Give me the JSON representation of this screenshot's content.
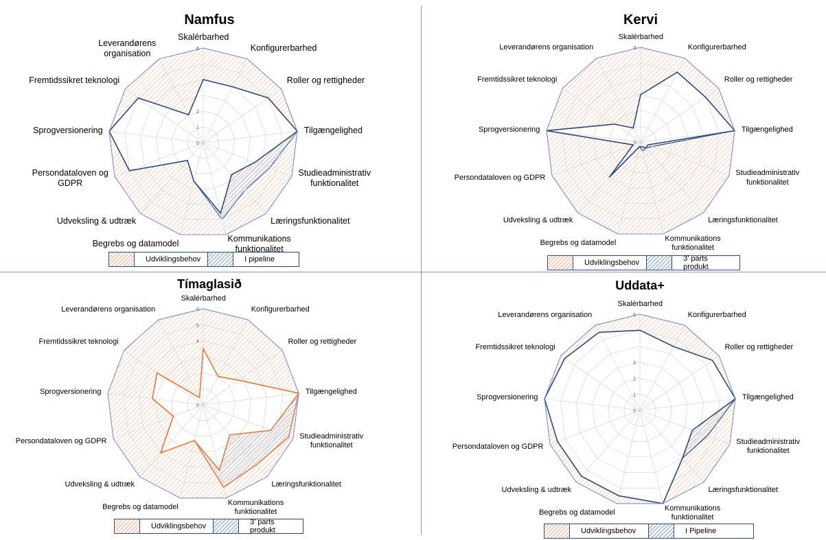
{
  "labels": [
    "Skalérbarhed",
    "Konfigurerbarhed",
    "Roller og rettigheder",
    "Tilgængelighed",
    "Studieadministrativ funktionalitet",
    "Læringsfunktionalitet",
    "Kommunikations funktionalitet",
    "Begrebs og datamodel",
    "Udveksling & udtræk",
    "Persondataloven og GDPR",
    "Sprogversionering",
    "Fremtidssikret teknologi",
    "Leverandørens organisation"
  ],
  "colors": {
    "development_hatch": "#f2c2a4",
    "pipeline_hatch": "#9fb5d8",
    "current_line": "#2e4a7a",
    "orange_line": "#e87c3e",
    "grid": "#d9d9d9"
  },
  "chart_data": [
    {
      "type": "radar",
      "title": "Namfus",
      "rmax": 6,
      "tick_labels": [
        "0",
        "1",
        "2",
        "",
        "",
        "",
        "6"
      ],
      "labels": [
        "Skalérbarhed",
        "Konfigurerbarhed",
        "Roller og rettigheder",
        "Tilgængelighed",
        "Studieadministrativ funktionalitet",
        "Læringsfunktionalitet",
        "Kommunikations funktionalitet",
        "Begrebs og datamodel",
        "Udveksling & udtræk",
        "Persondataloven og GDPR",
        "Sprogversionering",
        "Fremtidssikret teknologi",
        "Leverandørens organisation"
      ],
      "label_lines": [
        [
          "Skalérbarhed"
        ],
        [
          "Konfigurerbarhed"
        ],
        [
          "Roller og rettigheder"
        ],
        [
          "Tilgængelighed"
        ],
        [
          "Studieadministrativ",
          "funktionalitet"
        ],
        [
          "Læringsfunktionalitet"
        ],
        [
          "Kommunikations",
          "funktionalitet"
        ],
        [
          "Begrebs og datamodel"
        ],
        [
          "Udveksling & udtræk"
        ],
        [
          "Persondataloven og",
          "GDPR"
        ],
        [
          "Sprogversionering"
        ],
        [
          "Fremtidssikret teknologi"
        ],
        [
          "Leverandørens",
          "organisation"
        ]
      ],
      "series": [
        {
          "name": "Udviklingsbehov",
          "values": [
            6,
            6,
            6,
            6,
            6,
            6,
            6,
            6,
            6,
            6,
            6,
            6,
            6
          ]
        },
        {
          "name": "I pipeline",
          "values": [
            4,
            4,
            5,
            6,
            4.5,
            4,
            5,
            2.5,
            1.5,
            5,
            6,
            5,
            2
          ]
        },
        {
          "values": [
            4,
            4,
            5,
            6,
            3.5,
            2.7,
            4.6,
            2.5,
            1.5,
            5,
            6,
            5,
            2
          ]
        }
      ],
      "legend": [
        "Udviklingsbehov",
        "I pipeline"
      ]
    },
    {
      "type": "radar",
      "title": "Kervi",
      "rmax": 6,
      "tick_labels": [
        "0",
        "",
        "",
        "",
        "",
        "",
        "6"
      ],
      "labels": [
        "Skalérbarhed",
        "Konfigurerbarhed",
        "Roller og rettigheder",
        "Tilgængelighed",
        "Studieadministrativ funktionalitet",
        "Læringsfunktionalitet",
        "Kommunikations funktionalitet",
        "Begrebs og datamodel",
        "Udveksling & udtræk",
        "Persondataloven og GDPR",
        "Sprogversionering",
        "Fremtidssikret teknologi",
        "Leverandørens organisation"
      ],
      "label_lines": [
        [
          "Skalérbarhed"
        ],
        [
          "Konfigurerbarhed"
        ],
        [
          "Roller og rettigheder"
        ],
        [
          "Tilgængelighed"
        ],
        [
          "Studieadministrativ",
          "funktionalitet"
        ],
        [
          "Læringsfunktionalitet"
        ],
        [
          "Kommunikations",
          "funktionalitet"
        ],
        [
          "Begrebs og datamodel"
        ],
        [
          "Udveksling & udtræk"
        ],
        [
          "Persondataloven og GDPR"
        ],
        [
          "Sprogversionering"
        ],
        [
          "Fremtidssikret teknologi"
        ],
        [
          "Leverandørens organisation"
        ]
      ],
      "series": [
        {
          "name": "Udviklingsbehov",
          "values": [
            6,
            6,
            6,
            6,
            6,
            6,
            6,
            6,
            6,
            6,
            6,
            6,
            6
          ]
        },
        {
          "name": "3’ parts produkt",
          "values": [
            3,
            5,
            5,
            6,
            0.8,
            0.5,
            0.6,
            0.3,
            3,
            0.5,
            6,
            2,
            1
          ]
        },
        {
          "values": [
            3,
            5,
            5,
            6,
            0.5,
            0.5,
            0.3,
            0.3,
            3,
            0.5,
            6,
            2,
            1
          ]
        }
      ],
      "legend": [
        "Udviklingsbehov",
        "3’ parts produkt"
      ]
    },
    {
      "type": "radar",
      "title": "Tímaglasið",
      "rmax": 6,
      "tick_labels": [
        "0",
        "",
        "",
        "",
        "4",
        "5",
        "6"
      ],
      "labels": [
        "Skalérbarhed",
        "Konfigurerbarhed",
        "Roller og rettigheder",
        "Tilgængelighed",
        "Studieadministrativ funktionalitet",
        "Læringsfunktionalitet",
        "Kommunikations funktionalitet",
        "Begrebs og datamodel",
        "Udveksling & udtræk",
        "Persondataloven og GDPR",
        "Sprogversionering",
        "Fremtidssikret teknologi",
        "Leverandørens organisation"
      ],
      "label_lines": [
        [
          "Skalérbarhed"
        ],
        [
          "Konfigurerbarhed"
        ],
        [
          "Roller og rettigheder"
        ],
        [
          "Tilgængelighed"
        ],
        [
          "Studieadministrativ",
          "funktionalitet"
        ],
        [
          "Læringsfunktionalitet"
        ],
        [
          "Kommunikations",
          "funktionalitet"
        ],
        [
          "Begrebs og datamodel"
        ],
        [
          "Udveksling & udtræk"
        ],
        [
          "Persondataloven og GDPR"
        ],
        [
          "Sprogversionering"
        ],
        [
          "Fremtidssikret teknologi"
        ],
        [
          "Leverandørens organisation"
        ]
      ],
      "series": [
        {
          "name": "Udviklingsbehov",
          "values": [
            6,
            6,
            6,
            6,
            6,
            6,
            6,
            6,
            6,
            6,
            6,
            6,
            6
          ]
        },
        {
          "name": "3’ parts produkt",
          "values": [
            3.5,
            2,
            2.7,
            6,
            5.7,
            5,
            5.3,
            2.3,
            4,
            2,
            3.2,
            3.5,
            0.5
          ]
        },
        {
          "values": [
            3.5,
            2,
            2.7,
            6,
            4.5,
            2.5,
            4.2,
            2.3,
            4,
            2,
            3.2,
            3.5,
            0.5
          ]
        }
      ],
      "legend": [
        "Udviklingsbehov",
        "3’ parts produkt"
      ]
    },
    {
      "type": "radar",
      "title": "Uddata+",
      "rmax": 6,
      "tick_labels": [
        "0",
        "1",
        "2",
        "3",
        "",
        "",
        "6"
      ],
      "labels": [
        "Skalérbarhed",
        "Konfigurerbarhed",
        "Roller og rettigheder",
        "Tilgængelighed",
        "Studieadministrativ funktionalitet",
        "Læringsfunktionalitet",
        "Kommunikations funktionalitet",
        "Begrebs og datamodel",
        "Udveksling & udtræk",
        "Persondataloven og GDPR",
        "Sprogversionering",
        "Fremtidssikret teknologi",
        "Leverandørens organisation"
      ],
      "label_lines": [
        [
          "Skalérbarhed"
        ],
        [
          "Konfigurerbarhed"
        ],
        [
          "Roller og rettigheder"
        ],
        [
          "Tilgængelighed"
        ],
        [
          "Studieadministrativ",
          "funktionalitet"
        ],
        [
          "Læringsfunktionalitet"
        ],
        [
          "Kommunikations",
          "funktionalitet"
        ],
        [
          "Begrebs og datamodel"
        ],
        [
          "Udveksling & udtræk"
        ],
        [
          "Persondataloven og GDPR"
        ],
        [
          "Sprogversionering"
        ],
        [
          "Fremtidssikret teknologi"
        ],
        [
          "Leverandørens organisation"
        ]
      ],
      "series": [
        {
          "name": "Udviklingsbehov",
          "values": [
            6,
            6,
            6,
            6,
            6,
            6,
            6,
            6,
            6,
            6,
            6,
            6,
            6
          ]
        },
        {
          "name": "I Pipeline",
          "values": [
            5,
            4.5,
            5.5,
            6,
            4.5,
            4,
            6,
            5.5,
            5.5,
            5.5,
            6,
            5.7,
            5.5
          ]
        },
        {
          "values": [
            5,
            4.5,
            5.5,
            6,
            3.5,
            4,
            6,
            5.5,
            5.5,
            5.5,
            6,
            5.7,
            5.5
          ]
        }
      ],
      "legend": [
        "Udviklingsbehov",
        "I Pipeline"
      ]
    }
  ]
}
